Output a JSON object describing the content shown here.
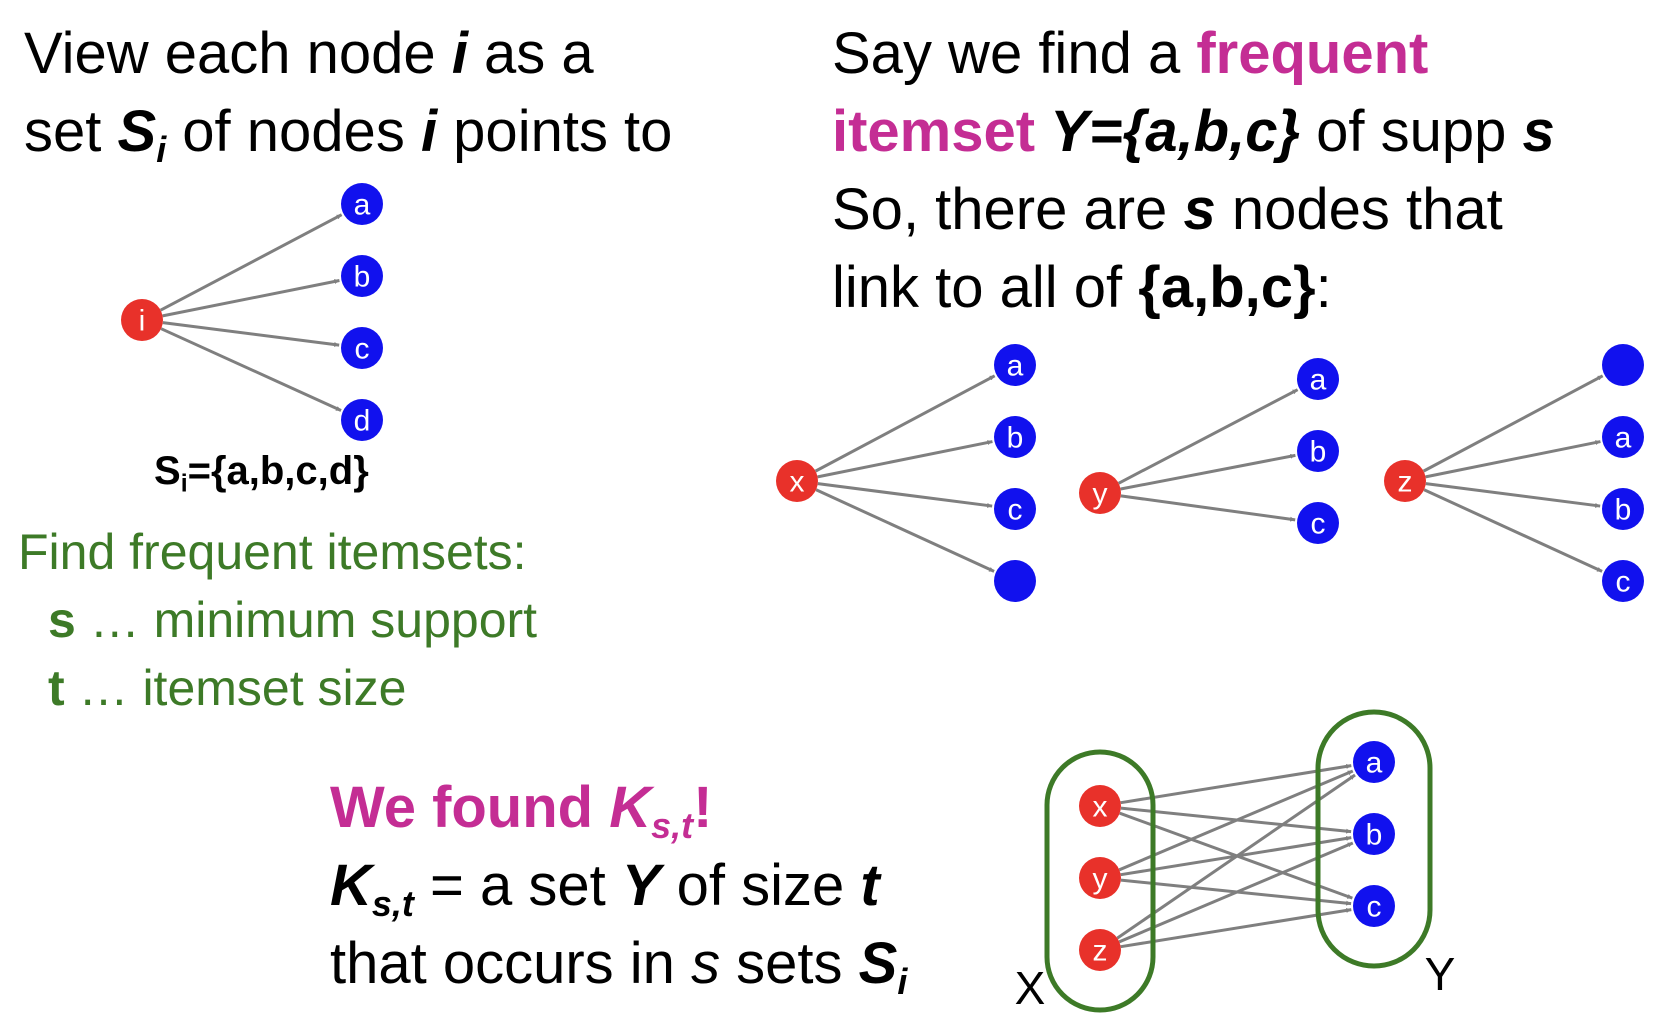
{
  "colors": {
    "source_node": "#e8312a",
    "target_node": "#1111ee",
    "edge": "#7f7f7f",
    "highlight": "#c42d94",
    "green": "#3d7a27"
  },
  "left": {
    "line1_a": "View each node ",
    "line1_i": "i",
    "line1_b": " as a",
    "line2_a": "set ",
    "line2_S": "S",
    "line2_sub": "i",
    "line2_b": " of nodes ",
    "line2_i": "i",
    "line2_c": " points to",
    "set_label_S": "S",
    "set_label_sub": "i",
    "set_label_rest": "={a,b,c,d}"
  },
  "find": {
    "title": "Find frequent itemsets:",
    "s_key": "s",
    "s_desc": " … minimum support",
    "t_key": "t",
    "t_desc": " … itemset size"
  },
  "right": {
    "line1_a": "Say we find a ",
    "line1_b": "frequent",
    "line2_a": "itemset",
    "line2_b": " Y={a,b,c}",
    "line2_c": " of supp ",
    "line2_s": "s",
    "line3_a": "So, there are ",
    "line3_s": "s",
    "line3_b": " nodes that",
    "line4_a": "link to all of ",
    "line4_b": "{a,b,c}",
    "line4_c": ":"
  },
  "bottom": {
    "found_a": "We found ",
    "found_K": "K",
    "found_sub": "s,t",
    "found_c": "!",
    "def_K": "K",
    "def_sub": "s,t",
    "def_a": " = a set ",
    "def_Y": "Y",
    "def_b": " of size ",
    "def_t": "t",
    "occ_a": "that occurs in ",
    "occ_s": "s",
    "occ_b": " sets ",
    "occ_S": "S",
    "occ_sub": "i"
  },
  "graphs": [
    {
      "source": "i",
      "targets": [
        "a",
        "b",
        "c",
        "d"
      ]
    },
    {
      "source": "x",
      "targets": [
        "a",
        "b",
        "c",
        ""
      ]
    },
    {
      "source": "y",
      "targets": [
        "a",
        "b",
        "c"
      ]
    },
    {
      "source": "z",
      "targets": [
        "",
        "a",
        "b",
        "c"
      ]
    }
  ],
  "bipartite": {
    "left_nodes": [
      "x",
      "y",
      "z"
    ],
    "right_nodes": [
      "a",
      "b",
      "c"
    ],
    "left_label": "X",
    "right_label": "Y"
  }
}
